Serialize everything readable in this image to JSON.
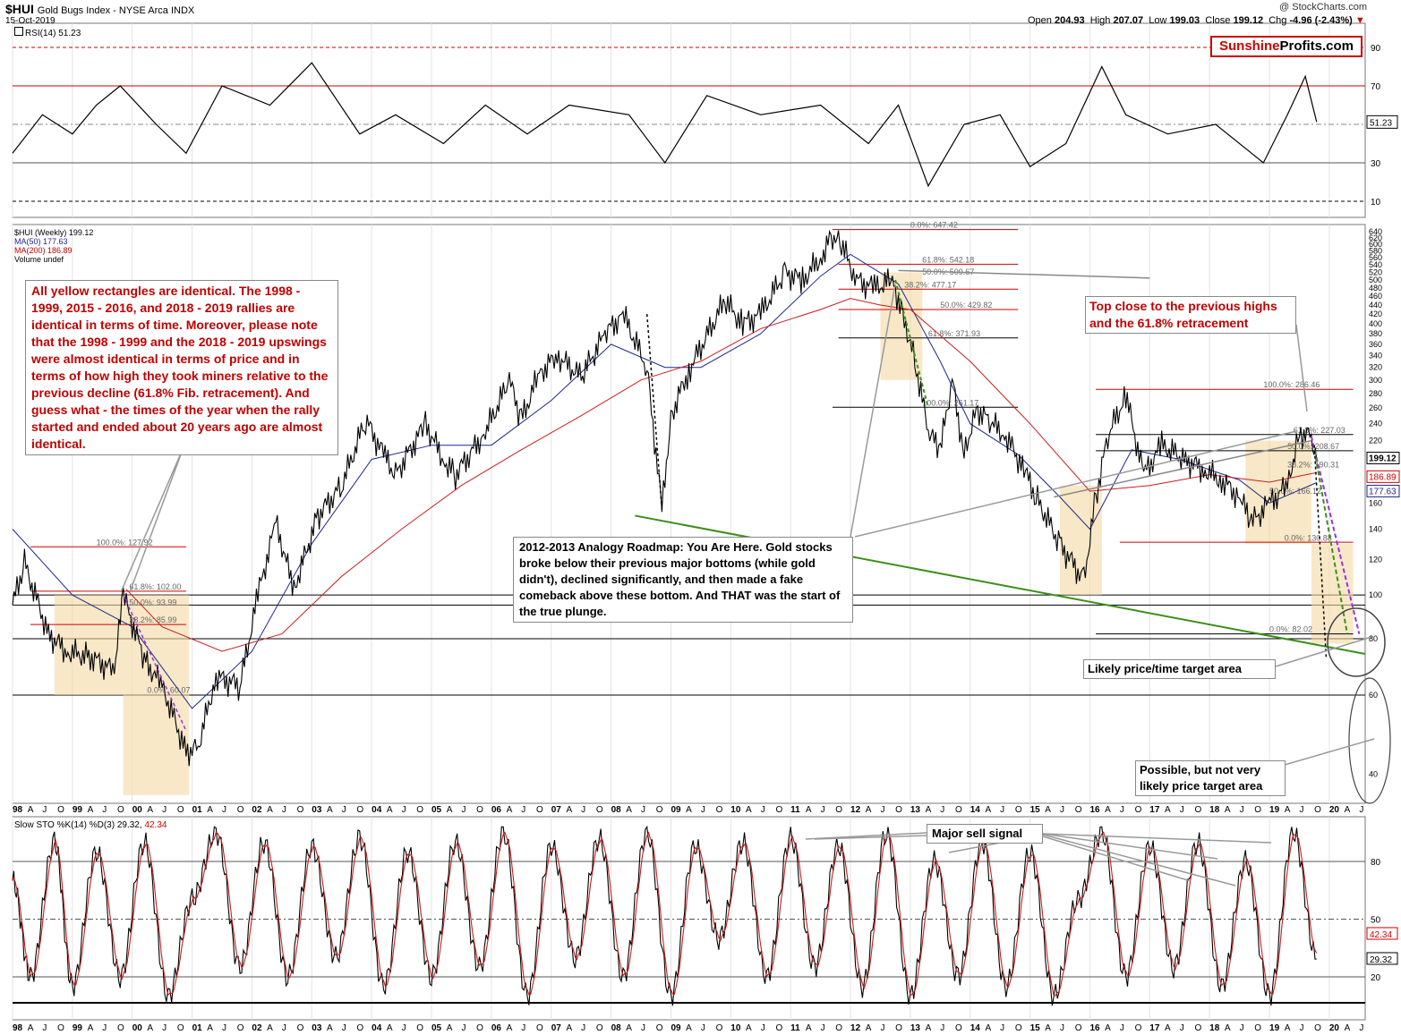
{
  "header": {
    "symbol": "$HUI",
    "name": "Gold Bugs Index - NYSE Arca INDX",
    "date": "15-Oct-2019",
    "copyright": "@ StockCharts.com",
    "open_label": "Open",
    "open": "204.93",
    "high_label": "High",
    "high": "207.07",
    "low_label": "Low",
    "low": "199.03",
    "close_label": "Close",
    "close": "199.12",
    "chg_label": "Chg",
    "chg": "-4.96 (-2.43%)"
  },
  "brand": {
    "part1": "Sunshine",
    "part2": "Profits.com"
  },
  "rsi_panel": {
    "label": "RSI(14) 51.23",
    "value": "51.23",
    "levels": [
      "90",
      "70",
      "30",
      "10"
    ]
  },
  "main_panel": {
    "legend": [
      "$HUI (Weekly) 199.12",
      "MA(50) 177.63",
      "MA(200) 186.89",
      "Volume undef"
    ],
    "price_labels": {
      "close": "199.12",
      "ma200": "186.89",
      "ma50": "177.63"
    }
  },
  "sto_panel": {
    "label": "Slow STO %K(14) %D(3) 29.32,",
    "d_value": "42.34",
    "k_value": "29.32",
    "levels": [
      "80",
      "50",
      "20"
    ]
  },
  "annotations": {
    "yellow_note": "All yellow rectangles are identical. The 1998 - 1999, 2015 - 2016, and 2018 - 2019 rallies are identical in terms of time. Moreover, please note that the 1998 - 1999 and the 2018 - 2019 upswings were almost identical in terms of price and in terms of how high they took miners relative to the previous decline (61.8% Fib. retracement). And guess what - the times of the year when the rally started and ended about 20 years ago are almost identical.",
    "top_note": "Top close to the previous highs and the 61.8% retracement",
    "roadmap_note": "2012-2013 Analogy Roadmap: You Are Here. Gold stocks broke below their previous major bottoms (while gold didn't), declined significantly, and then made a fake comeback above these bottom. And THAT was the start of the true plunge.",
    "likely_note": "Likely price/time target area",
    "possible_note": "Possible, but not very likely price target area",
    "sell_note": "Major sell signal"
  },
  "fib_labels": {
    "f1998": [
      "100.0%: 127.92",
      "61.8%: 102.00",
      "50.0%: 93.99",
      "38.2%: 85.99",
      "0.0%: 60.07"
    ],
    "f2011": [
      "0.0%: 647.42",
      "61.8%: 542.18",
      "50.0%: 509.67",
      "38.2%: 477.17",
      "50.0%: 429.82",
      "61.8%: 371.93",
      "100.0%: 261.17"
    ],
    "f2016": [
      "100.0%: 286.46",
      "61.8%: 227.03",
      "50.0%: 208.67",
      "38.2%: 190.31",
      "0.0%: 130.88",
      "50.0%: 166.12",
      "0.0%: 82.02"
    ]
  },
  "chart_data": {
    "type": "line",
    "title": "$HUI Gold Bugs Index - NYSE Arca INDX (Weekly)",
    "yscale": "log",
    "ylim": [
      30,
      660
    ],
    "xlim": [
      1998.0,
      2020.6
    ],
    "y_ticks": [
      640,
      620,
      600,
      580,
      560,
      540,
      520,
      500,
      480,
      460,
      440,
      420,
      400,
      380,
      360,
      340,
      320,
      300,
      280,
      260,
      240,
      220,
      200,
      180,
      160,
      140,
      120,
      100,
      80,
      60,
      40
    ],
    "x_ticks": [
      "98",
      "A",
      "J",
      "O",
      "99",
      "A",
      "J",
      "O",
      "00",
      "A",
      "J",
      "O",
      "01",
      "A",
      "J",
      "O",
      "02",
      "A",
      "J",
      "O",
      "03",
      "A",
      "J",
      "O",
      "04",
      "A",
      "J",
      "O",
      "05",
      "A",
      "J",
      "O",
      "06",
      "A",
      "J",
      "O",
      "07",
      "A",
      "J",
      "O",
      "08",
      "A",
      "J",
      "O",
      "09",
      "A",
      "J",
      "O",
      "10",
      "A",
      "J",
      "O",
      "11",
      "A",
      "J",
      "O",
      "12",
      "A",
      "J",
      "O",
      "13",
      "A",
      "J",
      "O",
      "14",
      "A",
      "J",
      "O",
      "15",
      "A",
      "J",
      "O",
      "16",
      "A",
      "J",
      "O",
      "17",
      "A",
      "J",
      "O",
      "18",
      "A",
      "J",
      "O",
      "19",
      "A",
      "J",
      "O",
      "20",
      "A",
      "J"
    ],
    "series": [
      {
        "name": "$HUI close",
        "x": [
          1998.0,
          1998.2,
          1998.6,
          1998.9,
          1999.3,
          1999.7,
          1999.85,
          2000.2,
          2000.5,
          2000.9,
          2001.1,
          2001.4,
          2001.8,
          2002.1,
          2002.4,
          2002.7,
          2003.1,
          2003.5,
          2003.9,
          2004.2,
          2004.4,
          2004.9,
          2005.2,
          2005.4,
          2005.9,
          2006.3,
          2006.5,
          2006.8,
          2007.1,
          2007.5,
          2007.9,
          2008.2,
          2008.6,
          2008.85,
          2009.0,
          2009.3,
          2009.9,
          2010.2,
          2010.5,
          2010.9,
          2011.2,
          2011.5,
          2011.7,
          2011.85,
          2012.1,
          2012.4,
          2012.7,
          2012.9,
          2013.1,
          2013.3,
          2013.5,
          2013.7,
          2013.9,
          2014.1,
          2014.3,
          2014.6,
          2014.9,
          2015.1,
          2015.5,
          2015.9,
          2016.1,
          2016.3,
          2016.6,
          2016.9,
          2017.2,
          2017.6,
          2017.9,
          2018.2,
          2018.5,
          2018.7,
          2019.0,
          2019.3,
          2019.5,
          2019.7,
          2019.79
        ],
        "y": [
          95,
          118,
          82,
          75,
          73,
          68,
          100,
          72,
          63,
          45,
          46,
          66,
          63,
          100,
          145,
          103,
          150,
          175,
          245,
          205,
          185,
          240,
          200,
          185,
          230,
          300,
          245,
          310,
          340,
          305,
          380,
          420,
          320,
          155,
          250,
          315,
          450,
          400,
          420,
          520,
          500,
          560,
          630,
          600,
          500,
          480,
          500,
          410,
          320,
          230,
          210,
          300,
          205,
          260,
          245,
          225,
          190,
          165,
          130,
          108,
          165,
          225,
          278,
          185,
          215,
          200,
          190,
          180,
          165,
          145,
          160,
          175,
          230,
          225,
          199.12
        ]
      },
      {
        "name": "MA(50)",
        "values_note": "smooth trend",
        "x": [
          1998.0,
          1999.0,
          2000.0,
          2001.0,
          2002.0,
          2003.0,
          2004.0,
          2005.0,
          2006.0,
          2007.0,
          2008.0,
          2008.9,
          2009.5,
          2010.5,
          2011.5,
          2012.0,
          2012.8,
          2013.5,
          2014.0,
          2014.8,
          2015.5,
          2016.0,
          2016.7,
          2017.5,
          2018.5,
          2019.0,
          2019.79
        ],
        "y": [
          140,
          100,
          85,
          56,
          75,
          130,
          200,
          215,
          215,
          270,
          360,
          320,
          320,
          380,
          510,
          570,
          490,
          330,
          240,
          205,
          165,
          140,
          210,
          200,
          180,
          160,
          177.63
        ]
      },
      {
        "name": "MA(200)",
        "x": [
          1999.9,
          2000.5,
          2001.5,
          2002.5,
          2003.5,
          2004.5,
          2005.5,
          2006.5,
          2007.5,
          2008.5,
          2009.5,
          2010.5,
          2011.5,
          2012.0,
          2012.5,
          2013.0,
          2014.0,
          2015.0,
          2016.0,
          2017.0,
          2018.0,
          2019.0,
          2019.79
        ],
        "y": [
          103,
          85,
          75,
          82,
          110,
          140,
          175,
          210,
          250,
          300,
          330,
          390,
          430,
          455,
          440,
          430,
          330,
          240,
          170,
          175,
          185,
          178,
          186.89
        ]
      }
    ],
    "rsi": {
      "name": "RSI(14)",
      "last": 51.23,
      "levels": [
        90,
        70,
        30,
        10
      ],
      "x": [
        1998.0,
        1998.5,
        1999.0,
        1999.4,
        1999.8,
        2000.4,
        2000.9,
        2001.5,
        2002.3,
        2003.0,
        2003.8,
        2004.4,
        2005.2,
        2005.9,
        2006.6,
        2007.3,
        2008.3,
        2008.9,
        2009.6,
        2010.5,
        2011.5,
        2012.3,
        2012.8,
        2013.3,
        2013.9,
        2014.5,
        2015.0,
        2015.6,
        2016.2,
        2016.6,
        2017.3,
        2018.1,
        2018.9,
        2019.3,
        2019.6,
        2019.79
      ],
      "y": [
        35,
        55,
        45,
        60,
        70,
        50,
        35,
        70,
        60,
        82,
        45,
        55,
        40,
        60,
        45,
        60,
        55,
        30,
        65,
        55,
        60,
        40,
        60,
        18,
        50,
        55,
        28,
        40,
        80,
        55,
        45,
        50,
        30,
        55,
        75,
        51.23
      ]
    },
    "slow_sto": {
      "name": "Slow STO",
      "k_last": 29.32,
      "d_last": 42.34,
      "levels": [
        80,
        50,
        20
      ],
      "x": [
        1998.0,
        1998.3,
        1998.7,
        1999.0,
        1999.4,
        1999.8,
        2000.2,
        2000.6,
        2001.0,
        2001.4,
        2001.8,
        2002.2,
        2002.6,
        2003.0,
        2003.4,
        2003.8,
        2004.2,
        2004.6,
        2005.0,
        2005.4,
        2005.8,
        2006.2,
        2006.6,
        2007.0,
        2007.4,
        2007.8,
        2008.2,
        2008.6,
        2009.0,
        2009.4,
        2009.8,
        2010.2,
        2010.6,
        2011.0,
        2011.4,
        2011.8,
        2012.2,
        2012.6,
        2013.0,
        2013.4,
        2013.8,
        2014.2,
        2014.6,
        2015.0,
        2015.4,
        2015.8,
        2016.2,
        2016.6,
        2017.0,
        2017.4,
        2017.8,
        2018.2,
        2018.6,
        2019.0,
        2019.4,
        2019.79
      ],
      "y": [
        70,
        20,
        90,
        15,
        85,
        20,
        90,
        10,
        60,
        95,
        25,
        90,
        20,
        88,
        30,
        92,
        15,
        85,
        20,
        90,
        25,
        95,
        10,
        88,
        30,
        92,
        20,
        95,
        10,
        88,
        40,
        90,
        20,
        92,
        25,
        88,
        15,
        95,
        10,
        80,
        20,
        90,
        15,
        85,
        10,
        60,
        95,
        20,
        88,
        25,
        90,
        15,
        80,
        10,
        95,
        29.32
      ]
    }
  }
}
